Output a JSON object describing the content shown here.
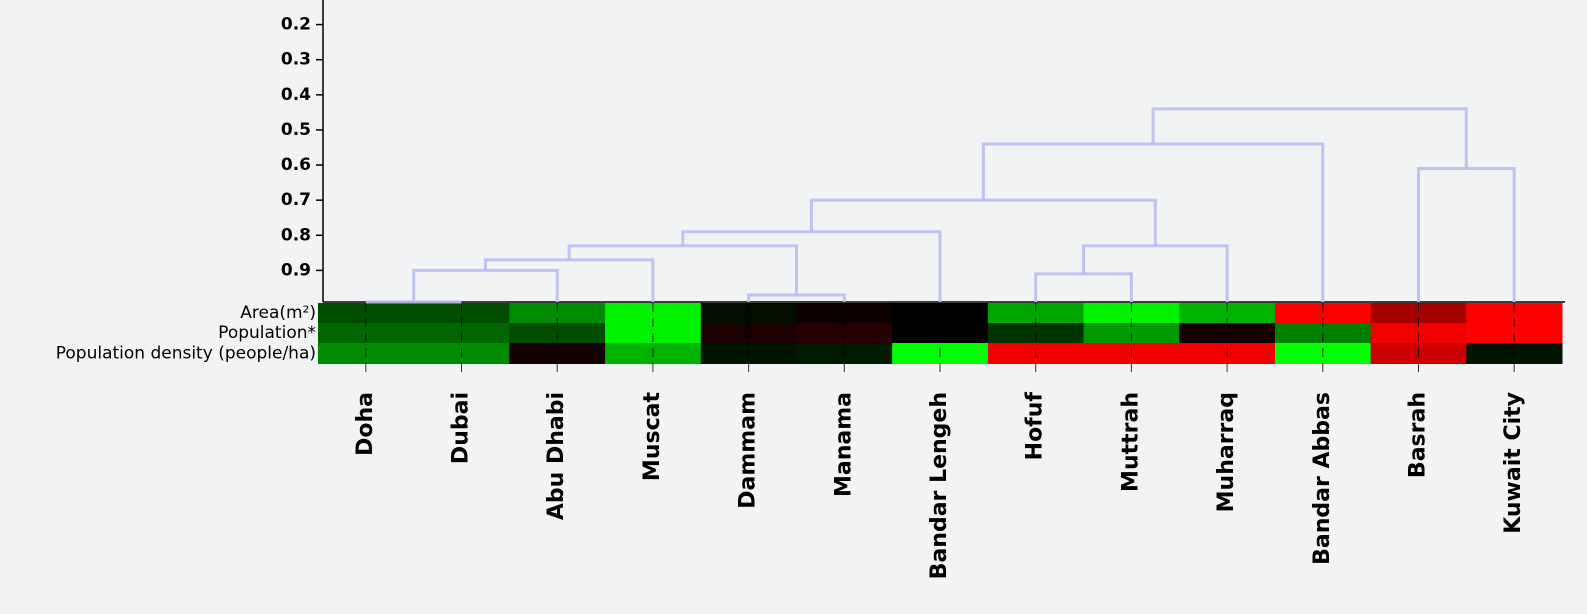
{
  "chart_data": {
    "type": "dendrogram-heatmap",
    "categories": [
      "Doha",
      "Dubai",
      "Abu Dhabi",
      "Muscat",
      "Dammam",
      "Manama",
      "Bandar Lengeh",
      "Hofuf",
      "Muttrah",
      "Muharraq",
      "Bandar Abbas",
      "Basrah",
      "Kuwait City"
    ],
    "ylim": [
      0.99,
      0.13
    ],
    "yticks": [
      0.2,
      0.3,
      0.4,
      0.5,
      0.6,
      0.7,
      0.8,
      0.9
    ],
    "merges": [
      [
        0,
        1,
        0.99
      ],
      [
        13,
        2,
        0.9
      ],
      [
        14,
        3,
        0.87
      ],
      [
        4,
        5,
        0.97
      ],
      [
        15,
        16,
        0.83
      ],
      [
        17,
        6,
        0.79
      ],
      [
        7,
        8,
        0.91
      ],
      [
        19,
        9,
        0.83
      ],
      [
        18,
        20,
        0.7
      ],
      [
        21,
        10,
        0.54
      ],
      [
        11,
        12,
        0.61
      ],
      [
        22,
        23,
        0.44
      ]
    ],
    "link_color": "#b9bdf2",
    "rows": [
      "Area(m²)",
      "Population*",
      "Population density (people/ha)"
    ],
    "heatmap": [
      [
        -0.3,
        -0.3,
        -0.55,
        -0.95,
        -0.05,
        0.05,
        0,
        -0.65,
        -0.95,
        -0.7,
        1,
        0.65,
        1
      ],
      [
        -0.4,
        -0.4,
        -0.3,
        -0.95,
        0.1,
        0.15,
        0,
        -0.2,
        -0.6,
        0.08,
        -0.5,
        0.95,
        1
      ],
      [
        -0.55,
        -0.55,
        0.08,
        -0.7,
        -0.08,
        -0.1,
        -1,
        0.95,
        0.95,
        0.95,
        -1,
        0.8,
        -0.08
      ]
    ],
    "colors": {
      "low": "#00ff00",
      "mid": "#000000",
      "high": "#ff0000"
    }
  }
}
